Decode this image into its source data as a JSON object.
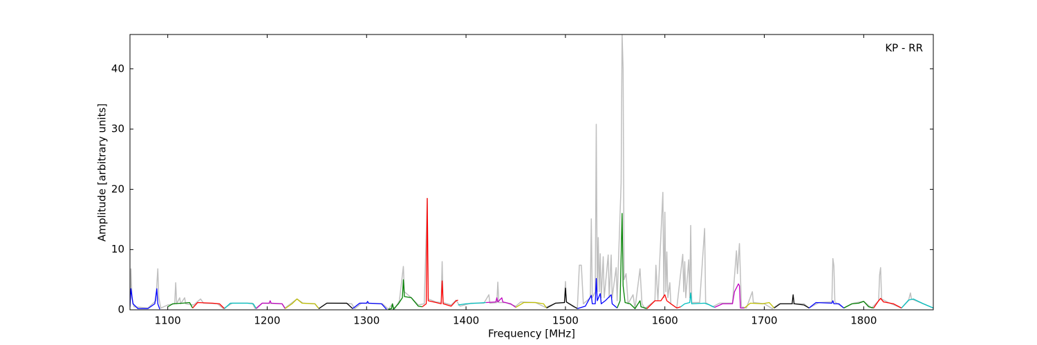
{
  "chart_data": {
    "type": "line",
    "annotation": "KP - RR",
    "xlabel": "Frequency [MHz]",
    "ylabel": "Amplitude [arbitrary units]",
    "xlim": [
      1062,
      1870
    ],
    "ylim": [
      0,
      45.7
    ],
    "xticks": [
      1100,
      1200,
      1300,
      1400,
      1500,
      1600,
      1700,
      1800
    ],
    "yticks": [
      0,
      10,
      20,
      30,
      40
    ],
    "grid": false,
    "series": [
      {
        "color": "#bfbfbf",
        "x": [
          1062,
          1063,
          1064,
          1066,
          1080,
          1088,
          1090,
          1091,
          1093,
          1100,
          1107,
          1108,
          1109,
          1112,
          1113,
          1117,
          1118,
          1126,
          1133,
          1136,
          1150,
          1156,
          1165,
          1185,
          1188,
          1195,
          1215,
          1218,
          1230,
          1236,
          1248,
          1252,
          1260,
          1285,
          1288,
          1295,
          1316,
          1322,
          1326,
          1328,
          1333,
          1337,
          1338,
          1345,
          1352,
          1358,
          1361,
          1362,
          1370,
          1375,
          1376,
          1377,
          1385,
          1390,
          1394,
          1405,
          1418,
          1423,
          1424,
          1431,
          1432,
          1433,
          1440,
          1450,
          1455,
          1470,
          1480,
          1490,
          1499,
          1500,
          1501,
          1508,
          1512,
          1514,
          1516,
          1518,
          1525,
          1526,
          1527,
          1530,
          1531,
          1532,
          1533,
          1534,
          1535,
          1536,
          1538,
          1539,
          1543,
          1544,
          1546,
          1547,
          1551,
          1552,
          1556,
          1557,
          1558,
          1559,
          1561,
          1563,
          1568,
          1570,
          1575,
          1577,
          1580,
          1586,
          1590,
          1591,
          1593,
          1598,
          1599,
          1600,
          1601,
          1602,
          1603,
          1605,
          1606,
          1612,
          1618,
          1619,
          1620,
          1621,
          1624,
          1625,
          1626,
          1627,
          1635,
          1640,
          1641,
          1648,
          1655,
          1668,
          1672,
          1673,
          1675,
          1677,
          1682,
          1688,
          1689,
          1700,
          1708,
          1715,
          1740,
          1745,
          1755,
          1768,
          1769,
          1770,
          1771,
          1780,
          1790,
          1800,
          1808,
          1815,
          1816,
          1817,
          1818,
          1825,
          1838,
          1845,
          1847,
          1848,
          1860,
          1870
        ],
        "values": [
          0.5,
          6.8,
          2,
          0.5,
          0.3,
          1.5,
          6.8,
          2,
          0.3,
          0.8,
          1,
          4.5,
          1,
          2,
          1,
          2,
          1,
          0.8,
          1.8,
          1.1,
          1,
          0.2,
          1.1,
          1.1,
          0.2,
          1.1,
          1,
          0.3,
          1.8,
          1.1,
          1,
          0.2,
          1.1,
          1,
          0.2,
          1.1,
          1,
          0.1,
          1,
          0.1,
          1.5,
          7.2,
          3,
          2,
          0.8,
          1,
          18.5,
          1.8,
          1.3,
          1.2,
          8,
          1.2,
          0.8,
          1.6,
          0.6,
          1.1,
          1.1,
          2.5,
          1.1,
          1.2,
          4.6,
          1.2,
          1.2,
          0.6,
          1.3,
          1.2,
          0.4,
          1.1,
          1.2,
          4.7,
          1.3,
          0.5,
          0.3,
          7.4,
          7.4,
          1,
          2,
          15.1,
          2,
          3,
          30.8,
          3,
          12,
          3,
          9.3,
          2,
          8.8,
          2,
          9.1,
          2,
          9.1,
          2,
          7,
          1.5,
          21,
          45.7,
          40,
          5,
          6,
          1,
          2.5,
          0.2,
          6.8,
          1,
          0.2,
          1,
          1.5,
          7.4,
          1.5,
          19.5,
          2,
          16.2,
          3,
          9.6,
          2,
          4.5,
          1,
          0.3,
          9.2,
          3,
          8,
          2,
          8.3,
          2,
          14,
          1.2,
          1.2,
          13.5,
          1.2,
          0.5,
          1.1,
          1.1,
          9.8,
          6,
          11,
          0.5,
          0.3,
          3,
          1.2,
          1,
          0.2,
          1,
          1,
          0.3,
          1.2,
          1.3,
          8.5,
          7.3,
          1.3,
          0.3,
          1.1,
          1.4,
          0.3,
          1.5,
          5.8,
          7,
          1.8,
          1.2,
          0.3,
          1.5,
          2.8,
          1.8,
          1,
          0.3
        ]
      },
      {
        "color": "#0000ff",
        "x": [
          1062,
          1063,
          1065,
          1070,
          1080,
          1087,
          1089,
          1090,
          1092
        ],
        "values": [
          0.5,
          3.5,
          1,
          0.2,
          0.2,
          1,
          3.5,
          1,
          0.1
        ]
      },
      {
        "color": "#008000",
        "x": [
          1100,
          1105,
          1115,
          1122,
          1125
        ],
        "values": [
          0.5,
          1,
          1.1,
          1.2,
          0.3
        ]
      },
      {
        "color": "#ff0000",
        "x": [
          1125,
          1130,
          1145,
          1152,
          1157
        ],
        "values": [
          0.3,
          1.2,
          1.1,
          1,
          0.2
        ]
      },
      {
        "color": "#00bfbf",
        "x": [
          1157,
          1163,
          1180,
          1186,
          1189
        ],
        "values": [
          0.2,
          1.1,
          1.1,
          1,
          0.2
        ]
      },
      {
        "color": "#bf00bf",
        "x": [
          1189,
          1195,
          1202,
          1203,
          1204,
          1215,
          1218
        ],
        "values": [
          0.2,
          1.1,
          1.1,
          1.5,
          1.1,
          1,
          0.2
        ]
      },
      {
        "color": "#bfbf00",
        "x": [
          1218,
          1225,
          1230,
          1235,
          1248,
          1252
        ],
        "values": [
          0.2,
          1,
          1.8,
          1.1,
          1,
          0.2
        ]
      },
      {
        "color": "#000000",
        "x": [
          1252,
          1260,
          1280,
          1286
        ],
        "values": [
          0.2,
          1.1,
          1.1,
          0.2
        ]
      },
      {
        "color": "#0000ff",
        "x": [
          1286,
          1293,
          1300,
          1301,
          1302,
          1315,
          1320
        ],
        "values": [
          0.2,
          1.1,
          1.1,
          1.4,
          1.1,
          1,
          0.1
        ]
      },
      {
        "color": "#008000",
        "x": [
          1322,
          1325,
          1326,
          1327,
          1332,
          1336,
          1337,
          1338,
          1345,
          1352,
          1356
        ],
        "values": [
          0.1,
          0.2,
          1,
          0.1,
          1,
          2,
          5,
          2.2,
          2,
          0.6,
          0.5
        ]
      },
      {
        "color": "#ff0000",
        "x": [
          1356,
          1360,
          1361,
          1362,
          1370,
          1375,
          1376,
          1377,
          1385,
          1390,
          1392
        ],
        "values": [
          0.5,
          1,
          18.5,
          1.5,
          1.2,
          1,
          4.8,
          1,
          0.6,
          1.5,
          1.6
        ]
      },
      {
        "color": "#00bfbf",
        "x": [
          1392,
          1400,
          1410,
          1420
        ],
        "values": [
          0.8,
          1,
          1.1,
          1.2
        ]
      },
      {
        "color": "#bf00bf",
        "x": [
          1420,
          1430,
          1431,
          1432,
          1436,
          1437,
          1445,
          1450
        ],
        "values": [
          1.2,
          1.3,
          2,
          1.3,
          2,
          1.3,
          1,
          0.4
        ]
      },
      {
        "color": "#bfbf00",
        "x": [
          1450,
          1458,
          1470,
          1478,
          1481
        ],
        "values": [
          0.4,
          1.2,
          1.2,
          1,
          0.3
        ]
      },
      {
        "color": "#000000",
        "x": [
          1481,
          1490,
          1499,
          1500,
          1501,
          1508,
          1512
        ],
        "values": [
          0.3,
          1.1,
          1.2,
          3.6,
          1.3,
          0.6,
          0.2
        ]
      },
      {
        "color": "#0000ff",
        "x": [
          1512,
          1520,
          1526,
          1527,
          1530,
          1531,
          1532,
          1535,
          1536,
          1540,
          1546,
          1547,
          1552
        ],
        "values": [
          0.2,
          0.6,
          2.4,
          1,
          1,
          5.2,
          1.5,
          2.7,
          1,
          1.5,
          2.5,
          1,
          0.3
        ]
      },
      {
        "color": "#008000",
        "x": [
          1552,
          1555,
          1557,
          1558,
          1560,
          1565,
          1570,
          1575,
          1576,
          1582
        ],
        "values": [
          0.3,
          1.5,
          16,
          4,
          1.2,
          1,
          0.2,
          1.5,
          0.5,
          0.2
        ]
      },
      {
        "color": "#ff0000",
        "x": [
          1582,
          1590,
          1596,
          1600,
          1602,
          1606,
          1612,
          1616
        ],
        "values": [
          0.2,
          1.5,
          1.5,
          2.5,
          1.5,
          1,
          0.3,
          0.5
        ]
      },
      {
        "color": "#00bfbf",
        "x": [
          1616,
          1620,
          1625,
          1626,
          1627,
          1640,
          1645,
          1650
        ],
        "values": [
          0.5,
          1,
          1.2,
          2.8,
          1,
          1.1,
          0.8,
          0.4
        ]
      },
      {
        "color": "#bf00bf",
        "x": [
          1650,
          1658,
          1668,
          1670,
          1674,
          1675,
          1676,
          1680
        ],
        "values": [
          0.4,
          1,
          1,
          3,
          4.3,
          4,
          0.3,
          0.3
        ]
      },
      {
        "color": "#bfbf00",
        "x": [
          1680,
          1686,
          1698,
          1705,
          1710
        ],
        "values": [
          0.3,
          1.1,
          1,
          1.2,
          0.3
        ]
      },
      {
        "color": "#000000",
        "x": [
          1710,
          1716,
          1728,
          1729,
          1730,
          1740,
          1745
        ],
        "values": [
          0.3,
          1,
          1,
          2.5,
          1,
          0.8,
          0.3
        ]
      },
      {
        "color": "#0000ff",
        "x": [
          1745,
          1752,
          1768,
          1769,
          1770,
          1775,
          1780
        ],
        "values": [
          0.3,
          1.2,
          1.1,
          1.5,
          1,
          1,
          0.3
        ]
      },
      {
        "color": "#008000",
        "x": [
          1780,
          1788,
          1795,
          1800,
          1805,
          1810
        ],
        "values": [
          0.3,
          1,
          1.1,
          1.4,
          0.5,
          0.3
        ]
      },
      {
        "color": "#ff0000",
        "x": [
          1810,
          1815,
          1817,
          1820,
          1830,
          1838
        ],
        "values": [
          0.3,
          1.5,
          1.9,
          1.3,
          1,
          0.3
        ]
      },
      {
        "color": "#00bfbf",
        "x": [
          1838,
          1845,
          1850,
          1860,
          1870
        ],
        "values": [
          0.3,
          1.6,
          1.8,
          1,
          0.3
        ]
      }
    ]
  }
}
